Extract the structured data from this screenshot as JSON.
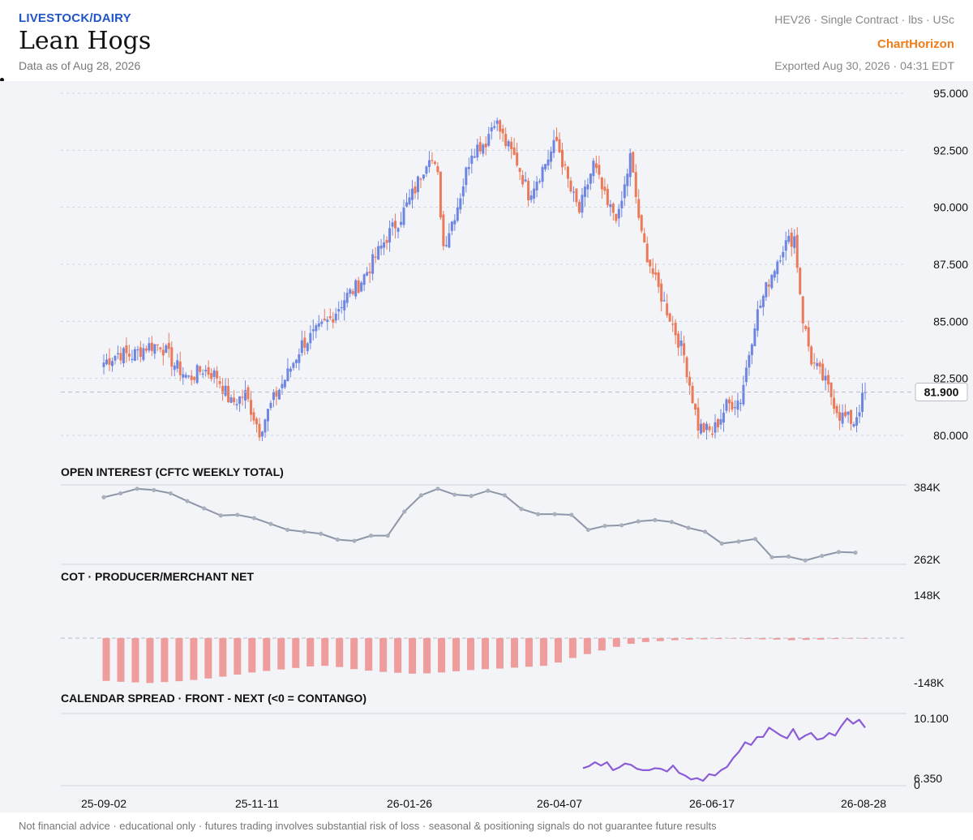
{
  "header": {
    "category": "LIVESTOCK/DAIRY",
    "title": "Lean Hogs",
    "as_of": "Data as of Aug 28, 2026",
    "contract": "HEV26 · Single Contract · lbs · USc",
    "brand": "ChartHorizon",
    "exported": "Exported Aug 30, 2026 · 04:31 EDT"
  },
  "footer": "Not financial advice · educational only · futures trading involves substantial risk of loss · seasonal & positioning signals do not guarantee future results",
  "colors": {
    "up": "#6f86e0",
    "down": "#ea7a5a",
    "oi": "#8c96a8",
    "cot": "#ee9c9c",
    "spread": "#8c5bd6",
    "grid": "#cfd3dc"
  },
  "chart_data": [
    {
      "type": "candlestick",
      "title": "",
      "ylim": [
        79.6,
        95.4
      ],
      "yticks": [
        95.0,
        92.5,
        90.0,
        87.5,
        85.0,
        82.5,
        80.0
      ],
      "ytick_labels": [
        "95.000",
        "92.500",
        "90.000",
        "87.500",
        "85.000",
        "82.500",
        "80.000"
      ],
      "last_price": 81.9,
      "last_price_label": "81.900",
      "x_tick_labels": [
        "25-09-02",
        "25-11-11",
        "26-01-26",
        "26-04-07",
        "26-06-17",
        "26-08-28"
      ],
      "close_anchors": [
        [
          0,
          83.2
        ],
        [
          5,
          83.6
        ],
        [
          10,
          83.5
        ],
        [
          15,
          83.9
        ],
        [
          20,
          84.0
        ],
        [
          25,
          83.1
        ],
        [
          30,
          82.5
        ],
        [
          35,
          82.9
        ],
        [
          40,
          82.6
        ],
        [
          45,
          81.4
        ],
        [
          50,
          81.8
        ],
        [
          55,
          80.2
        ],
        [
          60,
          81.6
        ],
        [
          65,
          82.7
        ],
        [
          70,
          84.0
        ],
        [
          75,
          84.5
        ],
        [
          80,
          85.1
        ],
        [
          85,
          86.0
        ],
        [
          90,
          86.6
        ],
        [
          95,
          87.6
        ],
        [
          100,
          88.7
        ],
        [
          105,
          89.6
        ],
        [
          110,
          90.8
        ],
        [
          115,
          92.4
        ],
        [
          118,
          91.3
        ],
        [
          120,
          88.3
        ],
        [
          125,
          90.1
        ],
        [
          130,
          92.5
        ],
        [
          135,
          92.9
        ],
        [
          138,
          93.9
        ],
        [
          142,
          92.8
        ],
        [
          146,
          92.0
        ],
        [
          150,
          90.6
        ],
        [
          155,
          91.7
        ],
        [
          160,
          92.9
        ],
        [
          165,
          90.7
        ],
        [
          168,
          89.8
        ],
        [
          173,
          91.9
        ],
        [
          178,
          90.0
        ],
        [
          182,
          89.6
        ],
        [
          186,
          92.2
        ],
        [
          190,
          88.7
        ],
        [
          195,
          86.7
        ],
        [
          200,
          85.2
        ],
        [
          205,
          83.5
        ],
        [
          210,
          80.4
        ],
        [
          215,
          80.1
        ],
        [
          220,
          81.3
        ],
        [
          225,
          81.6
        ],
        [
          230,
          85.0
        ],
        [
          235,
          86.8
        ],
        [
          240,
          88.3
        ],
        [
          244,
          88.7
        ],
        [
          247,
          85.1
        ],
        [
          250,
          83.3
        ],
        [
          255,
          82.3
        ],
        [
          260,
          80.9
        ],
        [
          265,
          80.6
        ],
        [
          269,
          81.9
        ]
      ]
    },
    {
      "type": "line",
      "title": "OPEN INTEREST (CFTC WEEKLY TOTAL)",
      "ylim": [
        262,
        384
      ],
      "ytick_labels": [
        "384K",
        "262K"
      ],
      "values": [
        365,
        371,
        378,
        376,
        371,
        359,
        348,
        337,
        338,
        333,
        324,
        315,
        312,
        309,
        300,
        298,
        306,
        306,
        343,
        368,
        378,
        369,
        367,
        375,
        368,
        347,
        339,
        339,
        338,
        315,
        321,
        322,
        328,
        330,
        327,
        318,
        312,
        294,
        297,
        301,
        273,
        274,
        268,
        275,
        281,
        280
      ]
    },
    {
      "type": "bar",
      "title": "COT · PRODUCER/MERCHANT NET",
      "ylim": [
        -148,
        148
      ],
      "ytick_labels": [
        "148K",
        "-148K"
      ],
      "values": [
        -142,
        -145,
        -147,
        -149,
        -146,
        -143,
        -139,
        -134,
        -128,
        -121,
        -114,
        -109,
        -104,
        -99,
        -94,
        -92,
        -96,
        -103,
        -108,
        -112,
        -115,
        -118,
        -117,
        -114,
        -110,
        -106,
        -103,
        -101,
        -98,
        -95,
        -92,
        -81,
        -66,
        -53,
        -41,
        -29,
        -19,
        -13,
        -10,
        -7,
        -5,
        -4,
        -3,
        -2,
        -3,
        -4,
        -5,
        -7,
        -6,
        -5,
        -3,
        -2,
        -2
      ]
    },
    {
      "type": "line",
      "title": "CALENDAR SPREAD · FRONT - NEXT (<0 = CONTANGO)",
      "ylim": [
        0,
        10.1
      ],
      "ytick_labels": [
        "10.100",
        "6.350",
        "0"
      ],
      "x_start_index": 146,
      "values": [
        6.35,
        6.5,
        6.8,
        6.55,
        6.8,
        6.2,
        6.4,
        6.7,
        6.6,
        6.3,
        6.2,
        6.2,
        6.35,
        6.3,
        6.1,
        6.55,
        6.0,
        5.8,
        5.5,
        5.6,
        5.4,
        5.9,
        5.8,
        6.2,
        6.45,
        7.1,
        7.6,
        8.3,
        8.1,
        8.7,
        8.7,
        9.4,
        9.1,
        8.8,
        8.6,
        9.3,
        8.5,
        8.8,
        9.0,
        8.5,
        8.6,
        9.0,
        8.8,
        9.5,
        10.1,
        9.7,
        10.0,
        9.4
      ]
    }
  ]
}
